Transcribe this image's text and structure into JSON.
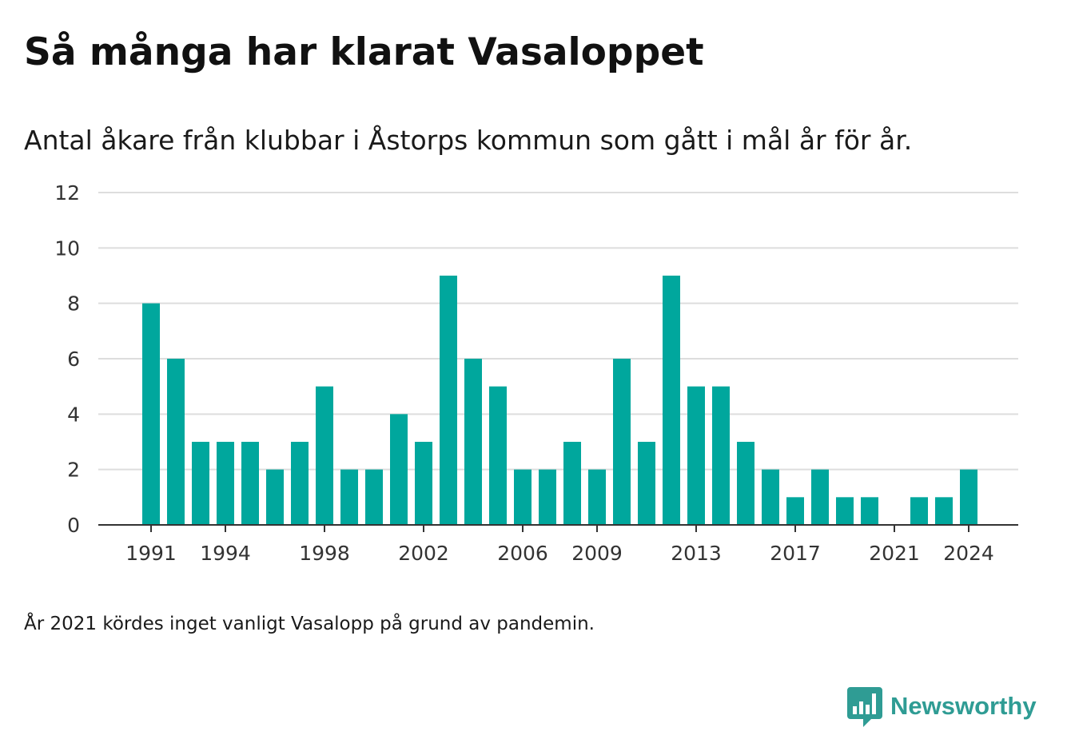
{
  "title": "Så många har klarat Vasaloppet",
  "subtitle": "Antal åkare från klubbar i Åstorps kommun som gått i mål år för år.",
  "note": "År 2021 kördes inget vanligt Vasalopp på grund av pandemin.",
  "brand": {
    "name": "Newsworthy",
    "icon": "newsworthy-logo-icon"
  },
  "colors": {
    "bar": "#00a79d",
    "grid": "#dddddd",
    "axis": "#333333",
    "brand": "#2f9c94"
  },
  "chart_data": {
    "type": "bar",
    "categories": [
      "1991",
      "1992",
      "1993",
      "1994",
      "1995",
      "1996",
      "1997",
      "1998",
      "1999",
      "2000",
      "2001",
      "2002",
      "2003",
      "2004",
      "2005",
      "2006",
      "2007",
      "2008",
      "2009",
      "2010",
      "2011",
      "2012",
      "2013",
      "2014",
      "2015",
      "2016",
      "2017",
      "2018",
      "2019",
      "2020",
      "2021",
      "2022",
      "2023",
      "2024"
    ],
    "values": [
      8,
      6,
      3,
      3,
      3,
      2,
      3,
      5,
      2,
      2,
      4,
      3,
      9,
      6,
      5,
      2,
      2,
      3,
      2,
      6,
      3,
      9,
      5,
      5,
      3,
      2,
      1,
      2,
      1,
      1,
      0,
      1,
      1,
      2
    ],
    "x_tick_labels": [
      "1991",
      "1994",
      "1998",
      "2002",
      "2006",
      "2009",
      "2013",
      "2017",
      "2021",
      "2024"
    ],
    "y_ticks": [
      0,
      2,
      4,
      6,
      8,
      10,
      12
    ],
    "ylim": [
      0,
      12
    ],
    "grid": true,
    "legend": "none"
  }
}
